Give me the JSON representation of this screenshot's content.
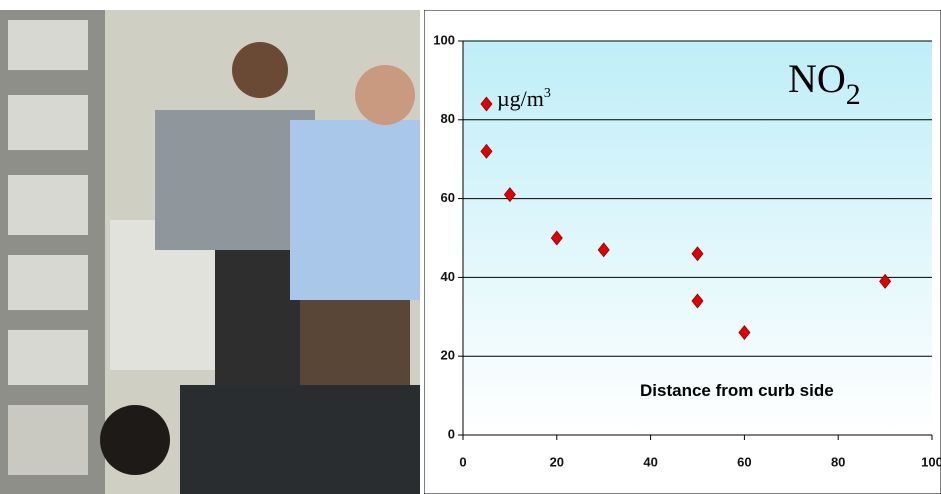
{
  "chart_data": {
    "type": "scatter",
    "title": "NO",
    "title_subscript": "2",
    "unit": "µg/m",
    "unit_exponent": "3",
    "annotation": "Distance from curb side",
    "x": [
      5,
      5,
      10,
      20,
      30,
      50,
      50,
      60,
      90
    ],
    "values": [
      84,
      72,
      61,
      50,
      47,
      46,
      34,
      26,
      39
    ],
    "color": "#e00000",
    "xlim": [
      0,
      100
    ],
    "xticks": [
      0,
      20,
      40,
      60,
      80,
      100
    ],
    "ylim": [
      0,
      100
    ],
    "yticks": [
      0,
      20,
      40,
      60,
      80,
      100
    ],
    "grid": true
  }
}
